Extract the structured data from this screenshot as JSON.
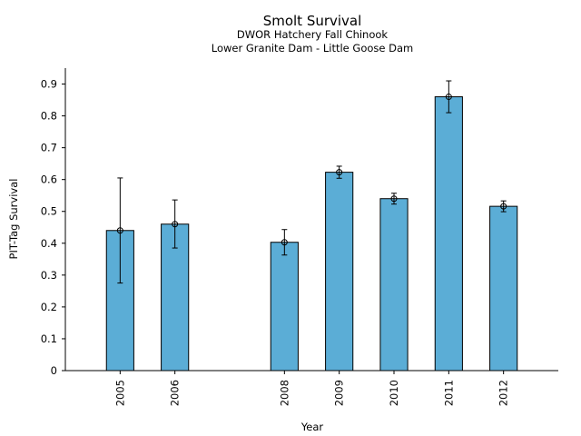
{
  "chart_data": {
    "type": "bar",
    "title": "Smolt Survival",
    "subtitle_1": "DWOR Hatchery Fall Chinook",
    "subtitle_2": "Lower Granite Dam - Little Goose Dam",
    "xlabel": "Year",
    "ylabel": "PIT-Tag Survival",
    "x_range": [
      2004,
      2013
    ],
    "ylim": [
      0,
      0.95
    ],
    "y_ticks": [
      "0",
      "0.1",
      "0.2",
      "0.3",
      "0.4",
      "0.5",
      "0.6",
      "0.7",
      "0.8",
      "0.9"
    ],
    "bar_color": "#5badd6",
    "bar_width_years": 0.5,
    "categories": [
      "2005",
      "2006",
      "2008",
      "2009",
      "2010",
      "2011",
      "2012"
    ],
    "x": [
      2005,
      2006,
      2008,
      2009,
      2010,
      2011,
      2012
    ],
    "values": [
      0.44,
      0.46,
      0.403,
      0.623,
      0.54,
      0.86,
      0.516
    ],
    "err_low": [
      0.275,
      0.385,
      0.363,
      0.604,
      0.523,
      0.81,
      0.499
    ],
    "err_high": [
      0.605,
      0.536,
      0.443,
      0.642,
      0.557,
      0.91,
      0.533
    ],
    "grid": false
  }
}
